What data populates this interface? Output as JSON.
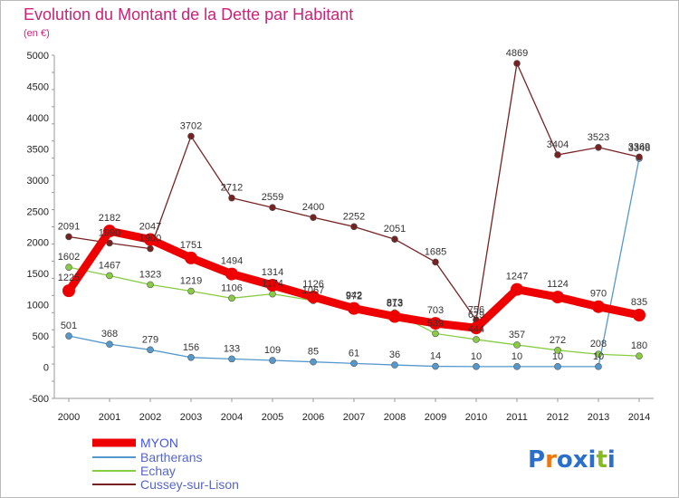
{
  "chart_data": {
    "type": "line",
    "title": "Evolution du Montant de la Dette par Habitant",
    "subtitle": "(en €)",
    "xlabel": "",
    "ylabel": "",
    "x": [
      "2000",
      "2001",
      "2002",
      "2003",
      "2004",
      "2005",
      "2006",
      "2007",
      "2008",
      "2009",
      "2010",
      "2011",
      "2012",
      "2013",
      "2014"
    ],
    "ylim": [
      -500,
      5000
    ],
    "yticks": [
      -500,
      0,
      500,
      1000,
      1500,
      2000,
      2500,
      3000,
      3500,
      4000,
      4500,
      5000
    ],
    "grid": false,
    "legend": "bottom-left",
    "series": [
      {
        "name": "MYON",
        "color": "#ee0000",
        "values": [
          1225,
          2182,
          2047,
          1751,
          1494,
          1314,
          1126,
          942,
          813,
          703,
          629,
          1247,
          1124,
          970,
          835
        ]
      },
      {
        "name": "Bartherans",
        "color": "#5599cc",
        "values": [
          501,
          368,
          279,
          156,
          133,
          109,
          85,
          61,
          36,
          14,
          10,
          10,
          10,
          10,
          3346
        ]
      },
      {
        "name": "Echay",
        "color": "#88cc44",
        "values": [
          1602,
          1467,
          1323,
          1219,
          1106,
          1174,
          1067,
          972,
          873,
          539,
          444,
          357,
          272,
          208,
          180
        ]
      },
      {
        "name": "Cussey-sur-Lison",
        "color": "#772222",
        "values": [
          2091,
          1990,
          1900,
          3702,
          2712,
          2559,
          2400,
          2252,
          2051,
          1685,
          756,
          4869,
          3404,
          3523,
          3369
        ]
      }
    ]
  },
  "logo": {
    "letters": [
      "P",
      "r",
      "o",
      "x",
      "i",
      "t",
      "i"
    ],
    "colors": [
      "#2a6fc9",
      "#ee7711",
      "#2a6fc9",
      "#2a6fc9",
      "#2a6fc9",
      "#88bb22",
      "#2a6fc9"
    ]
  }
}
